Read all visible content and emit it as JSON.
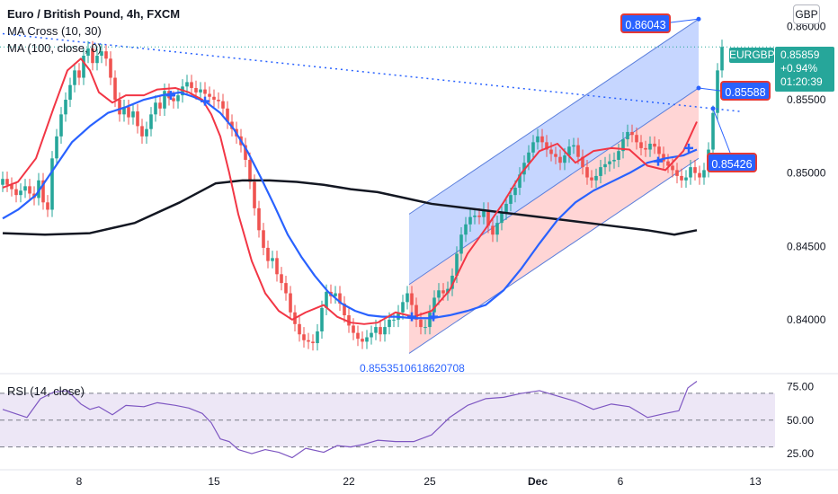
{
  "legend": {
    "title": "Euro / British Pound, 4h, FXCM",
    "ma_cross": "MA Cross (10, 30)",
    "ma100": "MA (100, close, 0)",
    "rsi": "RSI (14, close)"
  },
  "currency_label": "GBP",
  "symbol_tag": "EURGBP",
  "price_tag": {
    "price": "0.85859",
    "change": "+0.94%",
    "countdown": "01:20:39"
  },
  "callouts": {
    "top": "0.86043",
    "middle": "0.85588",
    "bottom": "0.85426"
  },
  "annotation": "0.8553510618620708",
  "colors": {
    "up": "#26a69a",
    "down": "#ef5350",
    "ma_fast": "#f23645",
    "ma_slow": "#2962ff",
    "ma100": "#131722",
    "channel_upper": "#b3c8ff",
    "channel_lower": "#ffc7c7",
    "rsi_line": "#7e57c2",
    "rsi_band": "#ede7f6"
  },
  "chart_data": {
    "type": "line",
    "price_axis": {
      "ticks": [
        "0.86000",
        "0.85500",
        "0.85000",
        "0.84500",
        "0.84000"
      ],
      "range": [
        0.8373,
        0.8618
      ]
    },
    "rsi_axis": {
      "ticks": [
        "75.00",
        "50.00",
        "25.00"
      ],
      "range": [
        15,
        82
      ],
      "levels": [
        70,
        50,
        30
      ]
    },
    "x_ticks": [
      "8",
      "15",
      "22",
      "25",
      "Dec",
      "6",
      "13"
    ],
    "tick_x": [
      88,
      238,
      388,
      478,
      598,
      690,
      840
    ],
    "bar_start_x": 3,
    "bar_spacing": 5,
    "closes": [
      0.8496,
      0.8492,
      0.8489,
      0.8485,
      0.8488,
      0.8491,
      0.8486,
      0.8483,
      0.8495,
      0.848,
      0.8475,
      0.851,
      0.8525,
      0.854,
      0.855,
      0.856,
      0.857,
      0.8565,
      0.858,
      0.8585,
      0.8575,
      0.858,
      0.8583,
      0.8578,
      0.8565,
      0.855,
      0.854,
      0.8545,
      0.8538,
      0.8542,
      0.8532,
      0.8525,
      0.853,
      0.854,
      0.8548,
      0.8544,
      0.8556,
      0.8551,
      0.8549,
      0.8553,
      0.8559,
      0.8562,
      0.8558,
      0.8555,
      0.8557,
      0.8554,
      0.8552,
      0.855,
      0.8549,
      0.8544,
      0.8535,
      0.853,
      0.8525,
      0.8519,
      0.8509,
      0.8494,
      0.8476,
      0.8461,
      0.8449,
      0.844,
      0.8442,
      0.8431,
      0.8425,
      0.8418,
      0.8405,
      0.8397,
      0.839,
      0.8386,
      0.8385,
      0.8384,
      0.8392,
      0.8408,
      0.8419,
      0.8416,
      0.8418,
      0.8411,
      0.8403,
      0.8396,
      0.8391,
      0.8387,
      0.8385,
      0.8388,
      0.8391,
      0.8395,
      0.839,
      0.8395,
      0.84,
      0.84,
      0.8405,
      0.8412,
      0.8418,
      0.841,
      0.84,
      0.8395,
      0.8395,
      0.8405,
      0.8415,
      0.842,
      0.8418,
      0.8421,
      0.843,
      0.8445,
      0.8458,
      0.8465,
      0.847,
      0.8471,
      0.847,
      0.8475,
      0.8464,
      0.8458,
      0.8466,
      0.8473,
      0.8479,
      0.8485,
      0.849,
      0.8499,
      0.8507,
      0.8514,
      0.8521,
      0.8525,
      0.8521,
      0.8516,
      0.8513,
      0.8511,
      0.8507,
      0.8512,
      0.8518,
      0.8519,
      0.8511,
      0.8504,
      0.8497,
      0.8495,
      0.8498,
      0.8504,
      0.8506,
      0.8508,
      0.8509,
      0.8515,
      0.8523,
      0.8528,
      0.8526,
      0.8521,
      0.8517,
      0.8516,
      0.852,
      0.8518,
      0.8513,
      0.8508,
      0.8505,
      0.8502,
      0.8498,
      0.8495,
      0.8497,
      0.8504,
      0.85,
      0.8497,
      0.8502,
      0.8516,
      0.8541,
      0.857,
      0.8586
    ],
    "ma_fast": {
      "name": "MA Cross (10, 30) fast",
      "x": [
        3,
        20,
        40,
        60,
        75,
        90,
        100,
        110,
        125,
        140,
        160,
        175,
        195,
        210,
        225,
        235,
        245,
        255,
        265,
        280,
        295,
        310,
        325,
        340,
        360,
        375,
        390,
        405,
        420,
        440,
        460,
        480,
        500,
        520,
        540,
        560,
        580,
        600,
        620,
        640,
        660,
        680,
        700,
        720,
        740,
        760,
        775
      ],
      "y": [
        0.849,
        0.8494,
        0.851,
        0.8545,
        0.857,
        0.8578,
        0.857,
        0.8555,
        0.8548,
        0.8553,
        0.8553,
        0.8557,
        0.8558,
        0.8555,
        0.855,
        0.854,
        0.8525,
        0.85,
        0.8472,
        0.844,
        0.8418,
        0.8406,
        0.84,
        0.8405,
        0.841,
        0.8402,
        0.8398,
        0.8397,
        0.8398,
        0.8405,
        0.8402,
        0.8406,
        0.842,
        0.8445,
        0.8462,
        0.848,
        0.85,
        0.8515,
        0.852,
        0.8507,
        0.8515,
        0.8517,
        0.8516,
        0.8505,
        0.8502,
        0.8515,
        0.8535
      ]
    },
    "ma_slow": {
      "name": "MA Cross (10, 30) slow",
      "x": [
        3,
        20,
        40,
        60,
        80,
        100,
        120,
        140,
        160,
        180,
        200,
        215,
        230,
        245,
        260,
        275,
        290,
        305,
        320,
        335,
        350,
        365,
        380,
        395,
        410,
        425,
        440,
        460,
        480,
        500,
        520,
        540,
        560,
        580,
        600,
        620,
        640,
        660,
        680,
        700,
        720,
        740,
        760,
        775
      ],
      "y": [
        0.8469,
        0.8475,
        0.8485,
        0.8503,
        0.8521,
        0.8532,
        0.8541,
        0.8545,
        0.855,
        0.8553,
        0.8555,
        0.8552,
        0.8548,
        0.8541,
        0.853,
        0.8515,
        0.8497,
        0.8478,
        0.8458,
        0.8443,
        0.843,
        0.8419,
        0.8411,
        0.8406,
        0.8403,
        0.8402,
        0.8402,
        0.8401,
        0.8401,
        0.8403,
        0.8406,
        0.841,
        0.842,
        0.8435,
        0.8452,
        0.8468,
        0.848,
        0.8488,
        0.8494,
        0.85,
        0.8507,
        0.851,
        0.8512,
        0.8516
      ]
    },
    "ma100": {
      "name": "MA (100, close, 0)",
      "x": [
        3,
        50,
        100,
        150,
        200,
        240,
        270,
        300,
        330,
        360,
        390,
        420,
        450,
        480,
        520,
        560,
        600,
        640,
        680,
        720,
        750,
        775
      ],
      "y": [
        0.8459,
        0.8458,
        0.8459,
        0.8466,
        0.848,
        0.8493,
        0.8495,
        0.8495,
        0.8494,
        0.8492,
        0.8489,
        0.8487,
        0.8483,
        0.8479,
        0.8476,
        0.8473,
        0.847,
        0.8467,
        0.8464,
        0.8461,
        0.8458,
        0.8461
      ]
    },
    "trendline": {
      "x": [
        3,
        823
      ],
      "y": [
        0.8595,
        0.8542
      ]
    },
    "channel": {
      "x": [
        455,
        777
      ],
      "upper": [
        0.8472,
        0.8605
      ],
      "middle": [
        0.8424,
        0.8558
      ],
      "lower": [
        0.8377,
        0.851
      ]
    },
    "rsi": {
      "name": "RSI (14, close)",
      "x": [
        3,
        30,
        45,
        60,
        75,
        90,
        100,
        110,
        125,
        140,
        160,
        175,
        195,
        210,
        225,
        235,
        245,
        255,
        265,
        280,
        295,
        310,
        325,
        340,
        360,
        375,
        390,
        405,
        420,
        440,
        460,
        480,
        500,
        520,
        540,
        560,
        580,
        600,
        620,
        640,
        660,
        680,
        700,
        720,
        740,
        755,
        765,
        775
      ],
      "y": [
        58,
        52,
        66,
        71,
        72,
        62,
        58,
        60,
        54,
        61,
        60,
        63,
        61,
        59,
        55,
        48,
        36,
        34,
        28,
        25,
        28,
        26,
        22,
        29,
        26,
        31,
        30,
        32,
        35,
        34,
        34,
        39,
        52,
        61,
        66,
        67,
        70,
        72,
        68,
        64,
        58,
        62,
        60,
        52,
        55,
        57,
        74,
        79
      ]
    }
  }
}
